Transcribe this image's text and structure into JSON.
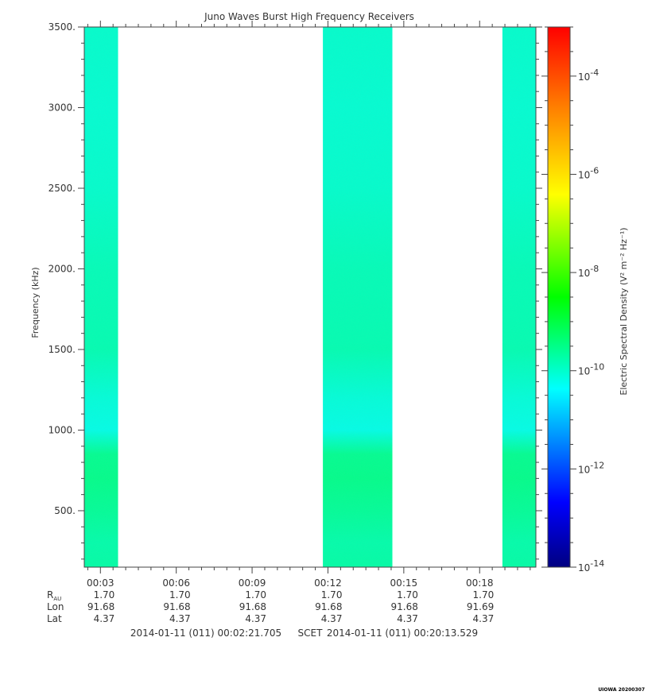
{
  "chart_data": {
    "type": "heatmap",
    "title": "Juno Waves Burst High Frequency Receivers",
    "ylabel": "Frequency (kHz)",
    "colorbar_label": "Electric Spectral Density (V² m⁻² Hz⁻¹)",
    "ylim": [
      150,
      3500
    ],
    "y_ticks": [
      500,
      1000,
      1500,
      2000,
      2500,
      3000,
      3500
    ],
    "y_tick_labels": [
      "500.",
      "1000.",
      "1500.",
      "2000.",
      "2500.",
      "3000.",
      "3500."
    ],
    "x_range_minutes": [
      2.3617,
      20.2255
    ],
    "x_ticks_minutes": [
      3,
      6,
      9,
      12,
      15,
      18
    ],
    "x_tick_labels": [
      "00:03",
      "00:06",
      "00:09",
      "00:12",
      "00:15",
      "00:18"
    ],
    "colorbar_scale": "log",
    "colorbar_range": [
      -14,
      -3
    ],
    "colorbar_ticks": [
      -14,
      -12,
      -10,
      -8,
      -6,
      -4
    ],
    "colorbar_tick_labels": [
      "-14",
      "-12",
      "-10",
      "-8",
      "-6",
      "-4"
    ],
    "colormap": [
      "#000080",
      "#0000ff",
      "#00ffff",
      "#00ff00",
      "#ffff00",
      "#ff8000",
      "#ff0000"
    ],
    "data_intervals_minutes": [
      [
        2.36,
        3.7
      ],
      [
        11.8,
        14.55
      ],
      [
        18.9,
        20.23
      ]
    ],
    "spectral_profile": {
      "freq_khz": [
        150,
        300,
        500,
        700,
        850,
        1000,
        1200,
        1500,
        2000,
        2500,
        3000,
        3500
      ],
      "log10_density": [
        -9.7,
        -9.75,
        -9.6,
        -9.5,
        -9.55,
        -10.2,
        -10.1,
        -9.8,
        -9.85,
        -10.0,
        -10.05,
        -10.0
      ]
    },
    "ephemeris": {
      "rows": [
        {
          "label": "R",
          "sub": "AU",
          "values": [
            "1.70",
            "1.70",
            "1.70",
            "1.70",
            "1.70",
            "1.70"
          ]
        },
        {
          "label": "Lon",
          "sub": "",
          "values": [
            "91.68",
            "91.68",
            "91.68",
            "91.68",
            "91.68",
            "91.69"
          ]
        },
        {
          "label": "Lat",
          "sub": "",
          "values": [
            "4.37",
            "4.37",
            "4.37",
            "4.37",
            "4.37",
            "4.37"
          ]
        }
      ]
    },
    "time_span": {
      "start": "2014-01-11 (011) 00:02:21.705",
      "mid": "SCET",
      "end": "2014-01-11 (011) 00:20:13.529"
    }
  },
  "footer": "UIOWA 20200307"
}
